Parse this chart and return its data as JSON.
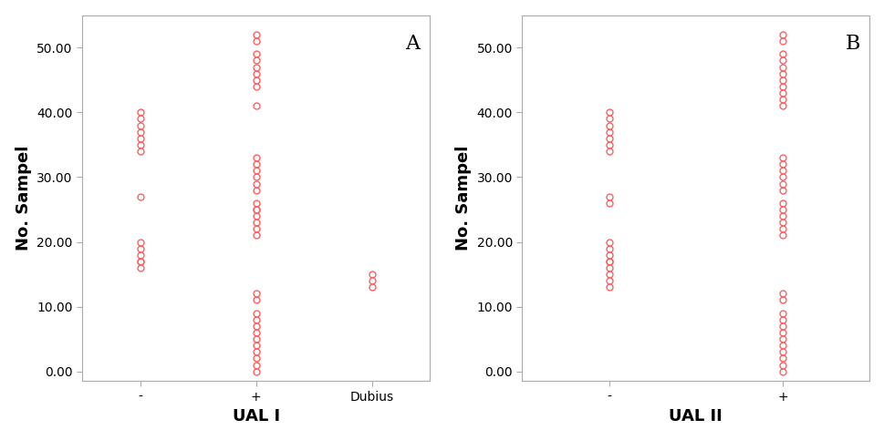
{
  "panel_A": {
    "label": "A",
    "xlabel": "UAL I",
    "ylabel": "No. Sampel",
    "ylim": [
      -1.5,
      55
    ],
    "yticks": [
      0,
      10,
      20,
      30,
      40,
      50
    ],
    "ytick_labels": [
      "0.00",
      "10.00",
      "20.00",
      "30.00",
      "40.00",
      "50.00"
    ],
    "categories": [
      "-",
      "+",
      "Dubius"
    ],
    "data": {
      "-": [
        16,
        17,
        17,
        18,
        19,
        20,
        27,
        34,
        35,
        36,
        37,
        38,
        39,
        40
      ],
      "+": [
        0,
        1,
        2,
        3,
        4,
        5,
        6,
        7,
        8,
        9,
        11,
        12,
        21,
        22,
        23,
        24,
        25,
        25,
        26,
        28,
        29,
        30,
        31,
        32,
        33,
        41,
        44,
        45,
        46,
        47,
        48,
        49,
        51,
        52
      ],
      "Dubius": [
        13,
        14,
        15
      ]
    }
  },
  "panel_B": {
    "label": "B",
    "xlabel": "UAL II",
    "ylabel": "No. Sampel",
    "ylim": [
      -1.5,
      55
    ],
    "yticks": [
      0,
      10,
      20,
      30,
      40,
      50
    ],
    "ytick_labels": [
      "0.00",
      "10.00",
      "20.00",
      "30.00",
      "40.00",
      "50.00"
    ],
    "categories": [
      "-",
      "+"
    ],
    "data": {
      "-": [
        13,
        14,
        15,
        16,
        17,
        17,
        18,
        19,
        20,
        26,
        27,
        34,
        35,
        36,
        37,
        38,
        39,
        40
      ],
      "+": [
        0,
        1,
        2,
        3,
        4,
        5,
        6,
        7,
        8,
        9,
        11,
        12,
        21,
        22,
        23,
        24,
        25,
        26,
        28,
        29,
        30,
        31,
        32,
        33,
        41,
        42,
        43,
        44,
        45,
        46,
        47,
        48,
        49,
        51,
        52
      ]
    }
  },
  "marker_color": "#FF6060",
  "marker_style": "o",
  "marker_size": 5,
  "marker_facecolor": "none",
  "marker_linewidth": 1.0,
  "bg_color": "#ffffff",
  "spine_color": "#aaaaaa",
  "ylabel_fontsize": 13,
  "xlabel_fontsize": 13,
  "tick_fontsize": 10,
  "annotation_fontsize": 16,
  "annotation_fontweight": "normal"
}
